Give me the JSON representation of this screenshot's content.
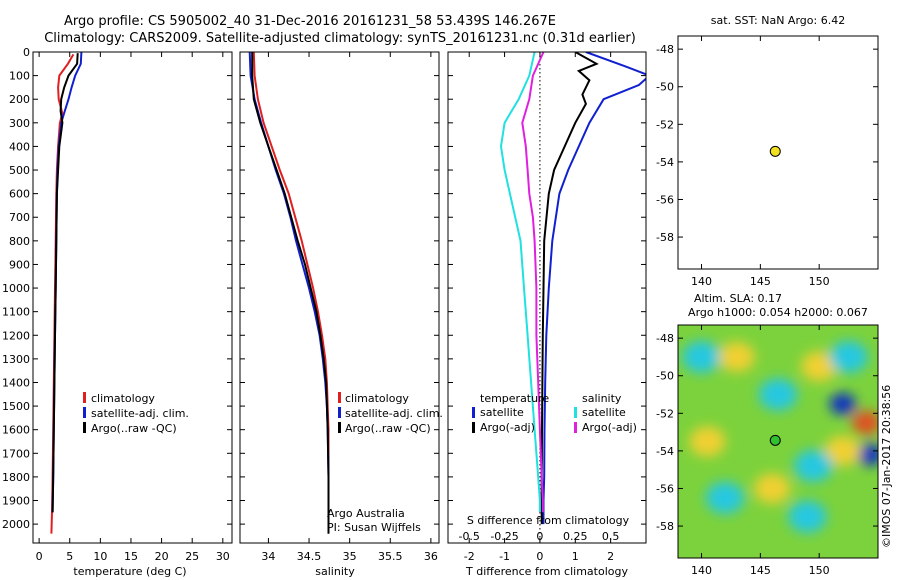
{
  "header": {
    "line1": "Argo profile: CS 5905002_40 31-Dec-2016 20161231_58 53.439S 146.267E",
    "line2": "Climatology: CARS2009. Satellite-adjusted climatology: synTS_20161231.nc (0.31d earlier)"
  },
  "colors": {
    "climatology": "#e02020",
    "satellite": "#1020d0",
    "argo": "#000000",
    "s_satellite": "#20e0e0",
    "s_argo": "#e020e0"
  },
  "chart_data": [
    {
      "id": "temperature",
      "type": "line",
      "xlabel": "temperature (deg C)",
      "ylabel": "",
      "xlim": [
        -1,
        31.5
      ],
      "ylim": [
        2080,
        0
      ],
      "xticks": [
        0,
        5,
        10,
        15,
        20,
        25,
        30
      ],
      "yticks": [
        0,
        100,
        200,
        300,
        400,
        500,
        600,
        700,
        800,
        900,
        1000,
        1100,
        1200,
        1300,
        1400,
        1500,
        1600,
        1700,
        1800,
        1900,
        2000
      ],
      "legend": [
        "climatology",
        "satellite-adj. clim.",
        "Argo(..raw -QC)"
      ],
      "series": [
        {
          "name": "climatology",
          "color": "#e02020",
          "x": [
            5.6,
            4.7,
            3.3,
            3.1,
            3.2,
            3.8,
            3.4,
            3.1,
            2.9,
            2.8,
            2.7,
            2.6,
            2.5,
            2.4,
            2.3,
            2.2,
            2.1,
            2.0
          ],
          "y": [
            10,
            50,
            100,
            150,
            200,
            260,
            300,
            400,
            500,
            600,
            800,
            1000,
            1200,
            1400,
            1600,
            1800,
            1950,
            2040
          ]
        },
        {
          "name": "satellite-adj. clim.",
          "color": "#1020d0",
          "x": [
            6.9,
            6.8,
            5.9,
            5.3,
            4.8,
            4.2,
            3.6,
            3.2,
            3.0,
            2.9,
            2.8,
            2.7,
            2.6,
            2.5,
            2.4,
            2.3,
            2.2
          ],
          "y": [
            0,
            50,
            100,
            150,
            200,
            250,
            300,
            400,
            500,
            600,
            800,
            1000,
            1200,
            1400,
            1600,
            1800,
            1950
          ]
        },
        {
          "name": "Argo(..raw -QC)",
          "color": "#000000",
          "x": [
            6.3,
            6.2,
            4.8,
            4.1,
            3.6,
            3.5,
            3.8,
            3.3,
            3.1,
            2.9,
            2.8,
            2.7,
            2.6,
            2.5,
            2.4,
            2.3,
            2.2
          ],
          "y": [
            5,
            50,
            100,
            150,
            200,
            250,
            300,
            400,
            500,
            600,
            800,
            1000,
            1200,
            1400,
            1600,
            1800,
            1950
          ]
        }
      ]
    },
    {
      "id": "salinity",
      "type": "line",
      "xlabel": "salinity",
      "ylabel": "",
      "xlim": [
        33.65,
        36.1
      ],
      "ylim": [
        2080,
        0
      ],
      "xticks": [
        34,
        34.5,
        35,
        35.5,
        36
      ],
      "xticklabels": [
        "34",
        "34.5",
        "35",
        "35.5",
        "36"
      ],
      "legend": [
        "climatology",
        "satellite-adj. clim.",
        "Argo(..raw -QC)"
      ],
      "annotation": [
        "Argo Australia",
        "PI: Susan Wijffels"
      ],
      "series": [
        {
          "name": "climatology",
          "color": "#e02020",
          "x": [
            33.82,
            33.83,
            33.87,
            33.94,
            34.04,
            34.14,
            34.25,
            34.33,
            34.41,
            34.48,
            34.55,
            34.61,
            34.66,
            34.7,
            34.72,
            34.73,
            34.74,
            34.74,
            34.74
          ],
          "y": [
            0,
            100,
            200,
            300,
            400,
            500,
            600,
            700,
            800,
            900,
            1000,
            1100,
            1200,
            1300,
            1400,
            1500,
            1600,
            1800,
            2040
          ]
        },
        {
          "name": "satellite-adj. clim.",
          "color": "#1020d0",
          "x": [
            33.77,
            33.78,
            33.83,
            33.91,
            34.0,
            34.09,
            34.19,
            34.27,
            34.34,
            34.42,
            34.5,
            34.57,
            34.63,
            34.67,
            34.7,
            34.72,
            34.73,
            34.74,
            34.74
          ],
          "y": [
            0,
            100,
            200,
            300,
            400,
            500,
            600,
            700,
            800,
            900,
            1000,
            1100,
            1200,
            1300,
            1400,
            1500,
            1600,
            1800,
            2040
          ]
        },
        {
          "name": "Argo(..raw -QC)",
          "color": "#000000",
          "x": [
            33.8,
            33.8,
            33.82,
            33.9,
            34.0,
            34.1,
            34.2,
            34.28,
            34.36,
            34.45,
            34.52,
            34.59,
            34.64,
            34.68,
            34.71,
            34.72,
            34.73,
            34.74,
            34.74
          ],
          "y": [
            0,
            100,
            200,
            300,
            400,
            500,
            600,
            700,
            800,
            900,
            1000,
            1100,
            1200,
            1300,
            1400,
            1500,
            1600,
            1800,
            2040
          ]
        }
      ]
    },
    {
      "id": "difference",
      "type": "line",
      "xlabel": "T difference from climatology",
      "top_axis_label": "S difference from climatology",
      "xlim": [
        -2.6,
        3.0
      ],
      "ylim": [
        2080,
        0
      ],
      "xticks": [
        -2,
        -1,
        0,
        1,
        2
      ],
      "xticklabels": [
        "-2",
        "-1",
        "0",
        "1",
        "2"
      ],
      "s_ticks": [
        -0.5,
        -0.25,
        0,
        0.25,
        0.5
      ],
      "s_ticklabels": [
        "-0.5",
        "-0.25",
        "0",
        "0.25",
        "0.5"
      ],
      "legend_titles": [
        "temperature",
        "salinity"
      ],
      "legend": [
        "satellite",
        "Argo(-adj)",
        "satellite",
        "Argo(-adj)"
      ],
      "series": [
        {
          "name": "T satellite",
          "color": "#1020d0",
          "x": [
            1.3,
            2.4,
            3.1,
            2.8,
            1.8,
            1.4,
            1.1,
            0.8,
            0.55,
            0.35,
            0.25,
            0.18,
            0.15,
            0.13,
            0.12,
            0.1,
            0.1,
            0.1
          ],
          "y": [
            0,
            60,
            100,
            140,
            200,
            300,
            400,
            500,
            600,
            800,
            1000,
            1200,
            1400,
            1600,
            1800,
            1900,
            1950,
            2000
          ]
        },
        {
          "name": "T Argo(-adj)",
          "color": "#000000",
          "x": [
            1.0,
            1.6,
            1.1,
            1.4,
            1.2,
            1.3,
            1.0,
            0.7,
            0.4,
            0.25,
            0.12,
            0.1,
            0.08,
            0.07,
            0.06,
            0.05,
            0.05,
            0.05
          ],
          "y": [
            0,
            50,
            80,
            120,
            180,
            220,
            300,
            400,
            500,
            600,
            800,
            1000,
            1200,
            1400,
            1600,
            1800,
            1950,
            2000
          ]
        },
        {
          "name": "S satellite",
          "color": "#20e0e0",
          "x": [
            -0.15,
            -0.3,
            -0.6,
            -1.0,
            -1.1,
            -1.0,
            -0.85,
            -0.7,
            -0.55,
            -0.45,
            -0.35,
            -0.25,
            -0.15,
            -0.05,
            0.0,
            0.0
          ],
          "y": [
            0,
            100,
            200,
            300,
            400,
            500,
            600,
            700,
            800,
            1000,
            1200,
            1400,
            1600,
            1800,
            1900,
            1950
          ]
        },
        {
          "name": "S Argo(-adj)",
          "color": "#e020e0",
          "x": [
            0.1,
            -0.2,
            -0.3,
            -0.5,
            -0.4,
            -0.35,
            -0.3,
            -0.2,
            -0.15,
            -0.1,
            -0.1,
            -0.05,
            0.0,
            0.05,
            0.08,
            0.08
          ],
          "y": [
            0,
            100,
            200,
            300,
            400,
            500,
            600,
            700,
            800,
            1000,
            1200,
            1400,
            1600,
            1800,
            1900,
            1950
          ]
        }
      ]
    },
    {
      "id": "sst-map",
      "type": "scatter",
      "title": "sat. SST: NaN Argo: 6.42",
      "xlim": [
        138,
        155
      ],
      "ylim": [
        -59.7,
        -47.3
      ],
      "xticks": [
        140,
        145,
        150
      ],
      "yticks": [
        -48,
        -50,
        -52,
        -54,
        -56,
        -58
      ],
      "points": [
        {
          "x": 146.267,
          "y": -53.439,
          "color": "#f0e020"
        }
      ]
    },
    {
      "id": "sla-map",
      "type": "heatmap",
      "title_line1": "Altim. SLA: 0.17",
      "title_line2": "Argo h1000: 0.054 h2000: 0.067",
      "xlim": [
        138,
        155
      ],
      "ylim": [
        -59.7,
        -47.3
      ],
      "xticks": [
        140,
        145,
        150
      ],
      "yticks": [
        -48,
        -50,
        -52,
        -54,
        -56,
        -58
      ],
      "points": [
        {
          "x": 146.267,
          "y": -53.439,
          "color": "#30c030"
        }
      ],
      "features": [
        {
          "x": 140,
          "y": -49,
          "kind": "low"
        },
        {
          "x": 143,
          "y": -49,
          "kind": "high"
        },
        {
          "x": 146.5,
          "y": -51,
          "kind": "low"
        },
        {
          "x": 150,
          "y": -49.5,
          "kind": "high"
        },
        {
          "x": 152.5,
          "y": -49,
          "kind": "low"
        },
        {
          "x": 152,
          "y": -51.5,
          "kind": "deep-low"
        },
        {
          "x": 154,
          "y": -52.5,
          "kind": "very-high"
        },
        {
          "x": 154.3,
          "y": -54.2,
          "kind": "deep-low"
        },
        {
          "x": 152,
          "y": -54,
          "kind": "high"
        },
        {
          "x": 149.5,
          "y": -54.8,
          "kind": "low"
        },
        {
          "x": 146,
          "y": -56,
          "kind": "high"
        },
        {
          "x": 149,
          "y": -57.5,
          "kind": "low"
        },
        {
          "x": 140.5,
          "y": -53.5,
          "kind": "high"
        },
        {
          "x": 142,
          "y": -56.5,
          "kind": "low"
        }
      ]
    }
  ],
  "watermark": "©IMOS 07-Jan-2017 20:38:56"
}
